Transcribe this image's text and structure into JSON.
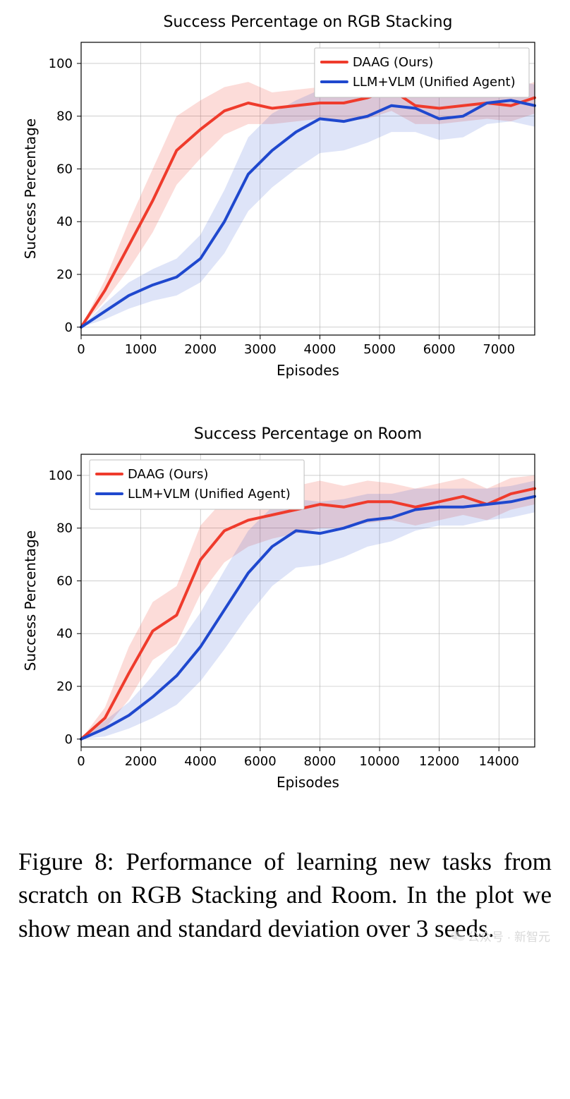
{
  "chart1": {
    "type": "line",
    "title": "Success Percentage on RGB Stacking",
    "title_fontsize": 22,
    "xlabel": "Episodes",
    "ylabel": "Success Percentage",
    "label_fontsize": 20,
    "tick_fontsize": 18,
    "xlim": [
      0,
      7600
    ],
    "ylim": [
      -3,
      108
    ],
    "xticks": [
      0,
      1000,
      2000,
      3000,
      4000,
      5000,
      6000,
      7000
    ],
    "yticks": [
      0,
      20,
      40,
      60,
      80,
      100
    ],
    "background_color": "#ffffff",
    "grid_color": "#b0b0b0",
    "grid_width": 0.6,
    "border_color": "#000000",
    "legend": {
      "position": "top-right",
      "fontsize": 18,
      "border_color": "#bfbfbf",
      "bg_color": "#ffffff",
      "entries": [
        {
          "label": "DAAG (Ours)",
          "color": "#ef3b2c"
        },
        {
          "label": "LLM+VLM (Unified Agent)",
          "color": "#1f48ce"
        }
      ]
    },
    "series": [
      {
        "name": "DAAG (Ours)",
        "color": "#ef3b2c",
        "fill_color": "#ef3b2c",
        "fill_opacity": 0.18,
        "line_width": 4,
        "x": [
          0,
          400,
          800,
          1200,
          1600,
          2000,
          2400,
          2800,
          3200,
          3600,
          4000,
          4400,
          4800,
          5200,
          5600,
          6000,
          6400,
          6800,
          7200,
          7600
        ],
        "mean": [
          0,
          14,
          31,
          48,
          67,
          75,
          82,
          85,
          83,
          84,
          85,
          85,
          87,
          90,
          84,
          83,
          84,
          85,
          84,
          87
        ],
        "lo": [
          0,
          10,
          22,
          36,
          54,
          64,
          73,
          77,
          77,
          78,
          79,
          78,
          79,
          82,
          77,
          77,
          78,
          79,
          78,
          81
        ],
        "hi": [
          0,
          18,
          40,
          60,
          80,
          86,
          91,
          93,
          89,
          90,
          91,
          92,
          95,
          98,
          91,
          89,
          90,
          91,
          90,
          93
        ]
      },
      {
        "name": "LLM+VLM (Unified Agent)",
        "color": "#1f48ce",
        "fill_color": "#1f48ce",
        "fill_opacity": 0.15,
        "line_width": 4,
        "x": [
          0,
          400,
          800,
          1200,
          1600,
          2000,
          2400,
          2800,
          3200,
          3600,
          4000,
          4400,
          4800,
          5200,
          5600,
          6000,
          6400,
          6800,
          7200,
          7600
        ],
        "mean": [
          0,
          6,
          12,
          16,
          19,
          26,
          40,
          58,
          67,
          74,
          79,
          78,
          80,
          84,
          83,
          79,
          80,
          85,
          86,
          84
        ],
        "lo": [
          0,
          3,
          7,
          10,
          12,
          17,
          28,
          44,
          53,
          60,
          66,
          67,
          70,
          74,
          74,
          71,
          72,
          77,
          78,
          76
        ],
        "hi": [
          0,
          9,
          17,
          22,
          26,
          35,
          52,
          72,
          81,
          86,
          90,
          89,
          90,
          94,
          92,
          87,
          88,
          93,
          94,
          92
        ]
      }
    ]
  },
  "chart2": {
    "type": "line",
    "title": "Success Percentage on Room",
    "title_fontsize": 22,
    "xlabel": "Episodes",
    "ylabel": "Success Percentage",
    "label_fontsize": 20,
    "tick_fontsize": 18,
    "xlim": [
      0,
      15200
    ],
    "ylim": [
      -3,
      108
    ],
    "xticks": [
      0,
      2000,
      4000,
      6000,
      8000,
      10000,
      12000,
      14000
    ],
    "yticks": [
      0,
      20,
      40,
      60,
      80,
      100
    ],
    "background_color": "#ffffff",
    "grid_color": "#b0b0b0",
    "grid_width": 0.6,
    "border_color": "#000000",
    "legend": {
      "position": "top-left",
      "fontsize": 18,
      "border_color": "#bfbfbf",
      "bg_color": "#ffffff",
      "entries": [
        {
          "label": "DAAG (Ours)",
          "color": "#ef3b2c"
        },
        {
          "label": "LLM+VLM (Unified Agent)",
          "color": "#1f48ce"
        }
      ]
    },
    "series": [
      {
        "name": "DAAG (Ours)",
        "color": "#ef3b2c",
        "fill_color": "#ef3b2c",
        "fill_opacity": 0.18,
        "line_width": 4,
        "x": [
          0,
          800,
          1600,
          2400,
          3200,
          4000,
          4800,
          5600,
          6400,
          7200,
          8000,
          8800,
          9600,
          10400,
          11200,
          12000,
          12800,
          13600,
          14400,
          15200
        ],
        "mean": [
          0,
          8,
          25,
          41,
          47,
          68,
          79,
          83,
          85,
          87,
          89,
          88,
          90,
          90,
          88,
          90,
          92,
          89,
          93,
          95
        ],
        "lo": [
          0,
          4,
          15,
          30,
          36,
          55,
          67,
          73,
          76,
          78,
          80,
          80,
          82,
          83,
          81,
          83,
          85,
          83,
          87,
          89
        ],
        "hi": [
          0,
          12,
          35,
          52,
          58,
          81,
          91,
          93,
          94,
          96,
          98,
          96,
          98,
          97,
          95,
          97,
          99,
          95,
          99,
          100
        ]
      },
      {
        "name": "LLM+VLM (Unified Agent)",
        "color": "#1f48ce",
        "fill_color": "#1f48ce",
        "fill_opacity": 0.15,
        "line_width": 4,
        "x": [
          0,
          800,
          1600,
          2400,
          3200,
          4000,
          4800,
          5600,
          6400,
          7200,
          8000,
          8800,
          9600,
          10400,
          11200,
          12000,
          12800,
          13600,
          14400,
          15200
        ],
        "mean": [
          0,
          4,
          9,
          16,
          24,
          35,
          49,
          63,
          73,
          79,
          78,
          80,
          83,
          84,
          87,
          88,
          88,
          89,
          90,
          92
        ],
        "lo": [
          0,
          1,
          4,
          8,
          13,
          22,
          34,
          47,
          58,
          65,
          66,
          69,
          73,
          75,
          79,
          81,
          81,
          83,
          84,
          86
        ],
        "hi": [
          0,
          7,
          14,
          24,
          35,
          48,
          64,
          79,
          88,
          91,
          90,
          91,
          93,
          93,
          95,
          95,
          95,
          95,
          96,
          98
        ]
      }
    ]
  },
  "caption": "Figure 8: Performance of learning new tasks from scratch on RGB Stacking and Room. In the plot we show mean and standard deviation over 3 seeds.",
  "watermark": {
    "text": "公众号 · 新智元",
    "color": "#d9d9d9"
  }
}
